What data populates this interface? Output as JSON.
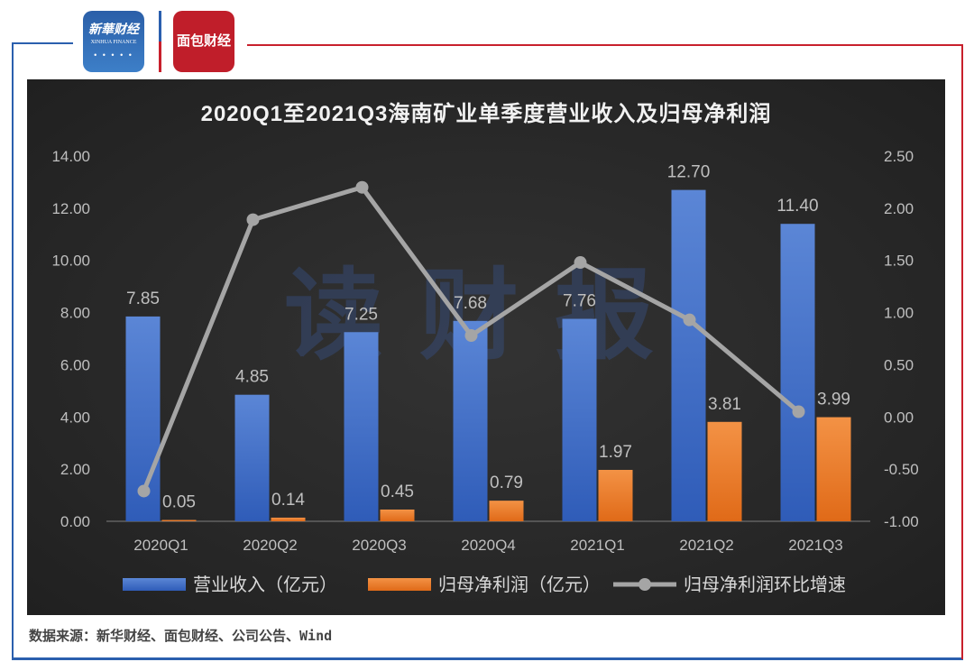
{
  "logos": {
    "left": "新华财经 XINHUA FINANCE",
    "right": "面包财经"
  },
  "watermark": "读财报",
  "source": "数据来源：新华财经、面包财经、公司公告、Wind",
  "colors": {
    "revenue": "#4472c4",
    "profit": "#ed7d31",
    "growth": "#a5a5a5",
    "background": "#262626"
  },
  "chart_data": {
    "type": "bar+line",
    "title": "2020Q1至2021Q3海南矿业单季度营业收入及归母净利润",
    "categories": [
      "2020Q1",
      "2020Q2",
      "2020Q3",
      "2020Q4",
      "2021Q1",
      "2021Q2",
      "2021Q3"
    ],
    "series": [
      {
        "name": "营业收入（亿元）",
        "type": "bar",
        "axis": "left",
        "values": [
          7.85,
          4.85,
          7.25,
          7.68,
          7.76,
          12.7,
          11.4
        ],
        "labels": [
          "7.85",
          "4.85",
          "7.25",
          "7.68",
          "7.76",
          "12.70",
          "11.40"
        ]
      },
      {
        "name": "归母净利润（亿元）",
        "type": "bar",
        "axis": "left",
        "values": [
          0.05,
          0.14,
          0.45,
          0.79,
          1.97,
          3.81,
          3.99
        ],
        "labels": [
          "0.05",
          "0.14",
          "0.45",
          "0.79",
          "1.97",
          "3.81",
          "3.99"
        ]
      },
      {
        "name": "归母净利润环比增速",
        "type": "line",
        "axis": "right",
        "values": [
          -0.71,
          1.89,
          2.2,
          0.78,
          1.48,
          0.93,
          0.05
        ]
      }
    ],
    "left_axis": {
      "ylim": [
        0,
        14
      ],
      "ticks": [
        "0.00",
        "2.00",
        "4.00",
        "6.00",
        "8.00",
        "10.00",
        "12.00",
        "14.00"
      ]
    },
    "right_axis": {
      "ylim": [
        -1,
        2.5
      ],
      "ticks": [
        "-1.00",
        "-0.50",
        "0.00",
        "0.50",
        "1.00",
        "1.50",
        "2.00",
        "2.50"
      ]
    },
    "grid": false,
    "legend": "bottom"
  }
}
